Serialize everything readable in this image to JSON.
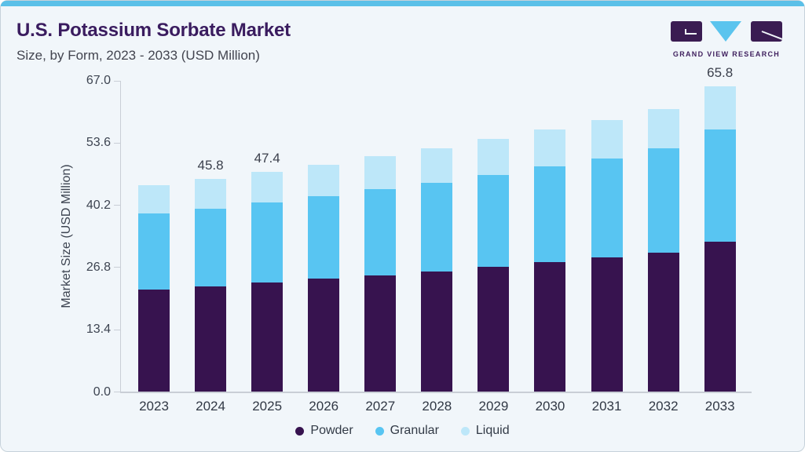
{
  "header": {
    "title": "U.S. Potassium Sorbate Market",
    "subtitle": "Size, by Form, 2023 - 2033 (USD Million)"
  },
  "logo": {
    "text": "GRAND VIEW RESEARCH"
  },
  "colors": {
    "accent_stripe": "#5bc0e8",
    "card_bg": "#f1f6fa",
    "card_border": "#c6d2da",
    "title": "#3a1c5f",
    "subtitle": "#42444f",
    "axis_line": "#c9ced6",
    "tick_text": "#3d4451",
    "x_label": "#313845",
    "bar_label": "#3a3f4b",
    "legend_text": "#323a46",
    "logo_purple": "#3a1c52",
    "logo_blue": "#5bc4ee",
    "logo_text": "#40215f",
    "powder": "#37134f",
    "granular": "#58c5f2",
    "liquid": "#bde7f9"
  },
  "chart_data": {
    "type": "bar",
    "stacked": true,
    "title": "U.S. Potassium Sorbate Market Size, by Form, 2023 - 2033 (USD Million)",
    "xlabel": "",
    "ylabel": "Market Size (USD Million)",
    "ylim": [
      0,
      67
    ],
    "yticks": [
      0.0,
      13.4,
      26.8,
      40.2,
      53.6,
      67.0
    ],
    "grid": false,
    "legend_position": "bottom",
    "categories": [
      "2023",
      "2024",
      "2025",
      "2026",
      "2027",
      "2028",
      "2029",
      "2030",
      "2031",
      "2032",
      "2033"
    ],
    "series": [
      {
        "name": "Powder",
        "color": "#37134f",
        "values": [
          22.1,
          22.8,
          23.6,
          24.4,
          25.1,
          25.9,
          26.9,
          27.9,
          28.9,
          30.0,
          32.4
        ]
      },
      {
        "name": "Granular",
        "color": "#58c5f2",
        "values": [
          16.3,
          16.7,
          17.2,
          17.8,
          18.5,
          19.2,
          19.8,
          20.6,
          21.4,
          22.4,
          24.2
        ]
      },
      {
        "name": "Liquid",
        "color": "#bde7f9",
        "values": [
          6.2,
          6.3,
          6.6,
          6.8,
          7.1,
          7.4,
          7.8,
          8.0,
          8.3,
          8.6,
          9.2
        ]
      }
    ],
    "totals": [
      44.6,
      45.8,
      47.4,
      49.0,
      50.7,
      52.5,
      54.5,
      56.5,
      58.6,
      61.0,
      65.8
    ],
    "bar_labels": {
      "2024": "45.8",
      "2025": "47.4",
      "2033": "65.8"
    }
  }
}
